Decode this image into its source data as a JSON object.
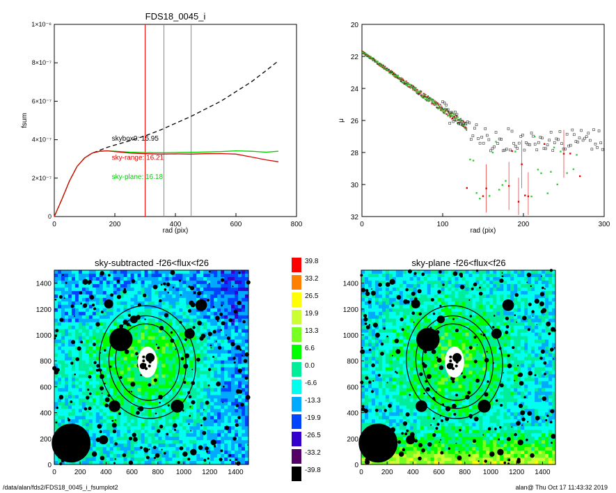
{
  "footer": {
    "path": "/data/alan/fds2/FDS18_0045_i_fsumplot2",
    "stamp": "alan@  Thu Oct 17 11:43:32 2019"
  },
  "chart_data": [
    {
      "type": "line",
      "title": "FDS18_0045_i",
      "xlabel": "rad (pix)",
      "ylabel": "fsum",
      "xlim": [
        0,
        800
      ],
      "ylim": [
        0,
        1e-06
      ],
      "xticks": [
        0,
        200,
        400,
        600,
        800
      ],
      "yticks": [
        0,
        2e-07,
        4e-07,
        6e-07,
        8e-07,
        1e-06
      ],
      "ytick_labels": [
        "0",
        "2×10⁻⁷",
        "4×10⁻⁷",
        "6×10⁻⁷",
        "8×10⁻⁷",
        "1×10⁻⁶"
      ],
      "vlines": [
        {
          "x": 300,
          "color": "#ff0000"
        },
        {
          "x": 362,
          "color": "#888888"
        },
        {
          "x": 452,
          "color": "#888888"
        }
      ],
      "series": [
        {
          "style": "dashed",
          "color": "#000000",
          "x": [
            0,
            25,
            50,
            75,
            100,
            125,
            150,
            175,
            200,
            250,
            300,
            350,
            400,
            450,
            500,
            550,
            600,
            650,
            700,
            740
          ],
          "y": [
            0,
            9e-08,
            1.85e-07,
            2.6e-07,
            3.05e-07,
            3.3e-07,
            3.45e-07,
            3.6e-07,
            3.72e-07,
            3.95e-07,
            4.2e-07,
            4.5e-07,
            4.85e-07,
            5.2e-07,
            5.6e-07,
            6e-07,
            6.5e-07,
            7e-07,
            7.6e-07,
            8.1e-07
          ]
        },
        {
          "style": "solid",
          "color": "#00cc00",
          "x": [
            0,
            25,
            50,
            75,
            100,
            125,
            150,
            175,
            200,
            250,
            300,
            350,
            400,
            450,
            500,
            550,
            600,
            650,
            700,
            740
          ],
          "y": [
            0,
            9e-08,
            1.85e-07,
            2.6e-07,
            3.05e-07,
            3.3e-07,
            3.4e-07,
            3.42e-07,
            3.4e-07,
            3.35e-07,
            3.33e-07,
            3.32e-07,
            3.33e-07,
            3.34e-07,
            3.36e-07,
            3.38e-07,
            3.42e-07,
            3.4e-07,
            3.35e-07,
            3.4e-07
          ]
        },
        {
          "style": "solid",
          "color": "#e00000",
          "x": [
            0,
            25,
            50,
            75,
            100,
            125,
            150,
            175,
            200,
            250,
            300,
            350,
            400,
            450,
            500,
            550,
            600,
            650,
            700,
            740
          ],
          "y": [
            0,
            9e-08,
            1.85e-07,
            2.6e-07,
            3.05e-07,
            3.3e-07,
            3.4e-07,
            3.42e-07,
            3.38e-07,
            3.3e-07,
            3.27e-07,
            3.25e-07,
            3.26e-07,
            3.25e-07,
            3.27e-07,
            3.28e-07,
            3.25e-07,
            3.1e-07,
            2.95e-07,
            2.85e-07
          ]
        }
      ],
      "annotations": [
        {
          "text": "skybox0: 15.95",
          "color": "#000000",
          "x": 190,
          "y": 3.95e-07
        },
        {
          "text": "sky-range: 16.21",
          "color": "#e00000",
          "x": 190,
          "y": 2.95e-07
        },
        {
          "text": "sky-plane: 16.18",
          "color": "#00cc00",
          "x": 190,
          "y": 1.95e-07
        }
      ]
    },
    {
      "type": "scatter",
      "title": "",
      "xlabel": "rad (pix)",
      "ylabel": "μ",
      "xlim": [
        0,
        300
      ],
      "ylim": [
        32,
        20
      ],
      "xticks": [
        0,
        100,
        200,
        300
      ],
      "yticks": [
        20,
        22,
        24,
        26,
        28,
        30,
        32
      ],
      "profile": {
        "intercept": 21.7,
        "slope": 0.036,
        "xmax": 130
      }
    },
    {
      "type": "heatmap",
      "title": "sky-subtracted -f26<flux<f26",
      "xlim": [
        0,
        1500
      ],
      "ylim": [
        0,
        1500
      ],
      "xticks": [
        0,
        200,
        400,
        600,
        800,
        1000,
        1200,
        1400
      ],
      "yticks": [
        0,
        200,
        400,
        600,
        800,
        1000,
        1200,
        1400
      ]
    },
    {
      "type": "heatmap",
      "title": "sky-plane -f26<flux<f26",
      "xlim": [
        0,
        1500
      ],
      "ylim": [
        0,
        1500
      ],
      "xticks": [
        0,
        200,
        400,
        600,
        800,
        1000,
        1200,
        1400
      ],
      "yticks": [
        0,
        200,
        400,
        600,
        800,
        1000,
        1200,
        1400
      ]
    }
  ],
  "colorbar": {
    "labels": [
      "39.8",
      "33.2",
      "26.5",
      "19.9",
      "13.3",
      "6.6",
      "0.0",
      "-6.6",
      "-13.3",
      "-19.9",
      "-26.5",
      "-33.2",
      "-39.8"
    ],
    "colors": [
      "#ff0000",
      "#ff7f00",
      "#ffff00",
      "#ccff33",
      "#77ff22",
      "#00ff00",
      "#00ee99",
      "#00ffee",
      "#00aaff",
      "#0044ff",
      "#3300cc",
      "#550066",
      "#000000"
    ]
  },
  "masks": [
    [
      515,
      965,
      90
    ],
    [
      615,
      1120,
      30
    ],
    [
      420,
      1240,
      35
    ],
    [
      1045,
      1010,
      40
    ],
    [
      1135,
      1230,
      45
    ],
    [
      740,
      825,
      35
    ],
    [
      465,
      450,
      45
    ],
    [
      685,
      760,
      25
    ],
    [
      950,
      450,
      50
    ],
    [
      670,
      430,
      20
    ],
    [
      130,
      165,
      150
    ],
    [
      380,
      190,
      35
    ],
    [
      1075,
      95,
      25
    ],
    [
      1010,
      80,
      20
    ],
    [
      780,
      1370,
      18
    ],
    [
      240,
      1410,
      22
    ],
    [
      880,
      1390,
      15
    ],
    [
      1260,
      1130,
      18
    ],
    [
      290,
      1290,
      18
    ],
    [
      820,
      520,
      18
    ],
    [
      1230,
      170,
      22
    ],
    [
      560,
      870,
      18
    ],
    [
      1400,
      1180,
      15
    ],
    [
      1390,
      820,
      12
    ],
    [
      310,
      80,
      20
    ]
  ]
}
